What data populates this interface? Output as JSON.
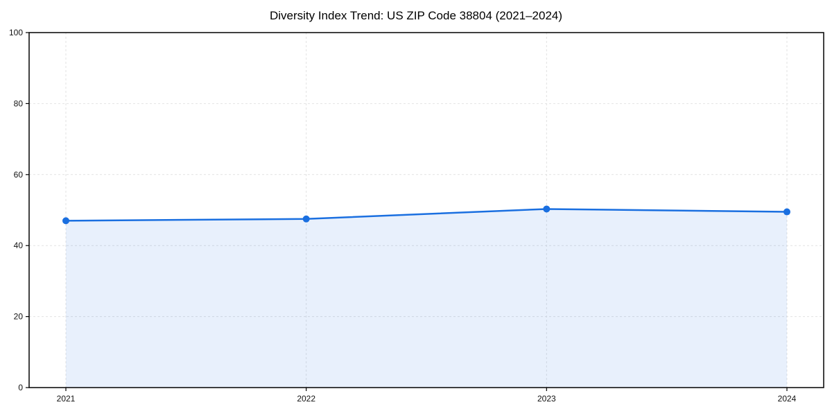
{
  "chart_data": {
    "type": "area",
    "title": "Diversity Index Trend: US ZIP Code 38804 (2021–2024)",
    "x": [
      "2021",
      "2022",
      "2023",
      "2024"
    ],
    "series": [
      {
        "name": "Diversity Index",
        "values": [
          47.0,
          47.5,
          50.3,
          49.5
        ]
      }
    ],
    "xlabel": "",
    "ylabel": "",
    "ylim": [
      0,
      100
    ],
    "yticks": [
      0,
      20,
      40,
      60,
      80,
      100
    ],
    "grid": "dashed-both-axes",
    "legend": "none",
    "colors": {
      "line": "#1a6fe0",
      "marker": "#1a6fe0",
      "fill": "rgba(26, 111, 224, 0.1)",
      "grid": "#e2e2e2",
      "axis": "#000000",
      "tick_text": "#111111",
      "background": "#ffffff"
    }
  }
}
